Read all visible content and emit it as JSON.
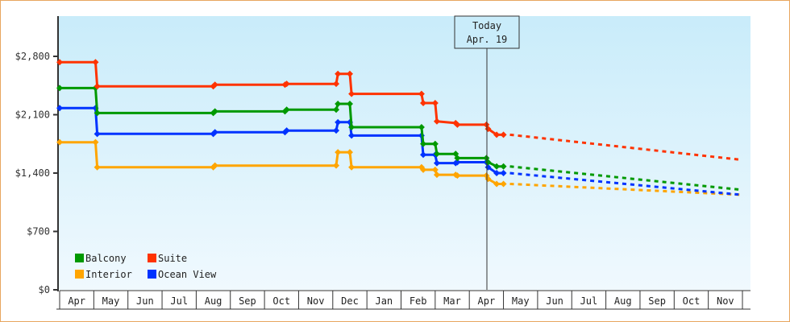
{
  "chart_data": {
    "type": "line",
    "title": "",
    "xlabel": "",
    "ylabel": "",
    "ylim": [
      0,
      3150
    ],
    "y_ticks": [
      "$0",
      "$700",
      "$1,400",
      "$2,100",
      "$2,800"
    ],
    "y_tick_values": [
      0,
      700,
      1400,
      2100,
      2800
    ],
    "x_months": [
      "Apr",
      "May",
      "Jun",
      "Jul",
      "Aug",
      "Sep",
      "Oct",
      "Nov",
      "Dec",
      "Jan",
      "Feb",
      "Mar",
      "Apr",
      "May",
      "Jun",
      "Jul",
      "Aug",
      "Sep",
      "Oct",
      "Nov"
    ],
    "grid": false,
    "legend_position": "bottom-left",
    "today_marker": {
      "line1": "Today",
      "line2": "Apr. 19"
    },
    "series": [
      {
        "name": "Balcony",
        "color": "#009900",
        "step": true,
        "points": [
          [
            0,
            2420
          ],
          [
            1.05,
            2420
          ],
          [
            1.1,
            2120
          ],
          [
            4.5,
            2120
          ],
          [
            4.55,
            2140
          ],
          [
            6.6,
            2140
          ],
          [
            6.65,
            2160
          ],
          [
            8.1,
            2160
          ],
          [
            8.15,
            2230
          ],
          [
            8.5,
            2230
          ],
          [
            8.55,
            1950
          ],
          [
            10.6,
            1950
          ],
          [
            10.65,
            1750
          ],
          [
            11.0,
            1750
          ],
          [
            11.05,
            1630
          ],
          [
            11.6,
            1630
          ],
          [
            11.65,
            1580
          ],
          [
            12.5,
            1580
          ],
          [
            12.55,
            1530
          ],
          [
            12.8,
            1480
          ],
          [
            13.0,
            1480
          ]
        ],
        "forecast": [
          [
            13.0,
            1480
          ],
          [
            20.0,
            1200
          ]
        ]
      },
      {
        "name": "Suite",
        "color": "#ff3300",
        "step": true,
        "points": [
          [
            0,
            2730
          ],
          [
            1.05,
            2730
          ],
          [
            1.1,
            2440
          ],
          [
            4.5,
            2440
          ],
          [
            4.55,
            2460
          ],
          [
            6.6,
            2460
          ],
          [
            6.65,
            2470
          ],
          [
            8.1,
            2470
          ],
          [
            8.15,
            2590
          ],
          [
            8.5,
            2590
          ],
          [
            8.55,
            2350
          ],
          [
            10.6,
            2350
          ],
          [
            10.65,
            2240
          ],
          [
            11.0,
            2240
          ],
          [
            11.05,
            2020
          ],
          [
            11.6,
            2000
          ],
          [
            11.65,
            1980
          ],
          [
            12.5,
            1980
          ],
          [
            12.55,
            1930
          ],
          [
            12.8,
            1860
          ],
          [
            13.0,
            1860
          ]
        ],
        "forecast": [
          [
            13.0,
            1860
          ],
          [
            20.0,
            1560
          ]
        ]
      },
      {
        "name": "Interior",
        "color": "#ffa500",
        "step": true,
        "points": [
          [
            0,
            1770
          ],
          [
            1.05,
            1770
          ],
          [
            1.1,
            1470
          ],
          [
            4.5,
            1470
          ],
          [
            4.55,
            1490
          ],
          [
            6.6,
            1490
          ],
          [
            6.65,
            1490
          ],
          [
            8.1,
            1490
          ],
          [
            8.15,
            1650
          ],
          [
            8.5,
            1650
          ],
          [
            8.55,
            1470
          ],
          [
            10.6,
            1470
          ],
          [
            10.65,
            1440
          ],
          [
            11.0,
            1440
          ],
          [
            11.05,
            1380
          ],
          [
            11.6,
            1380
          ],
          [
            11.65,
            1370
          ],
          [
            12.5,
            1370
          ],
          [
            12.55,
            1330
          ],
          [
            12.8,
            1270
          ],
          [
            13.0,
            1270
          ]
        ],
        "forecast": [
          [
            13.0,
            1270
          ],
          [
            20.0,
            1140
          ]
        ]
      },
      {
        "name": "Ocean View",
        "color": "#0033ff",
        "step": true,
        "points": [
          [
            0,
            2180
          ],
          [
            1.05,
            2180
          ],
          [
            1.1,
            1870
          ],
          [
            4.5,
            1870
          ],
          [
            4.55,
            1890
          ],
          [
            6.6,
            1890
          ],
          [
            6.65,
            1910
          ],
          [
            8.1,
            1910
          ],
          [
            8.15,
            2010
          ],
          [
            8.5,
            2010
          ],
          [
            8.55,
            1850
          ],
          [
            10.6,
            1850
          ],
          [
            10.65,
            1620
          ],
          [
            11.0,
            1620
          ],
          [
            11.05,
            1520
          ],
          [
            11.6,
            1520
          ],
          [
            11.65,
            1530
          ],
          [
            12.5,
            1530
          ],
          [
            12.55,
            1470
          ],
          [
            12.8,
            1400
          ],
          [
            13.0,
            1400
          ]
        ],
        "forecast": [
          [
            13.0,
            1400
          ],
          [
            20.0,
            1140
          ]
        ]
      }
    ]
  },
  "legend": {
    "items": [
      {
        "label": "Balcony",
        "color": "#009900"
      },
      {
        "label": "Suite",
        "color": "#ff3300"
      },
      {
        "label": "Interior",
        "color": "#ffa500"
      },
      {
        "label": "Ocean View",
        "color": "#0033ff"
      }
    ]
  },
  "today": {
    "line1": "Today",
    "line2": "Apr. 19"
  },
  "colors": {
    "frame": "#e8a65f",
    "bg_top": "#c9ecfa",
    "bg_bottom": "#f0f9fe",
    "axis": "#333333"
  }
}
